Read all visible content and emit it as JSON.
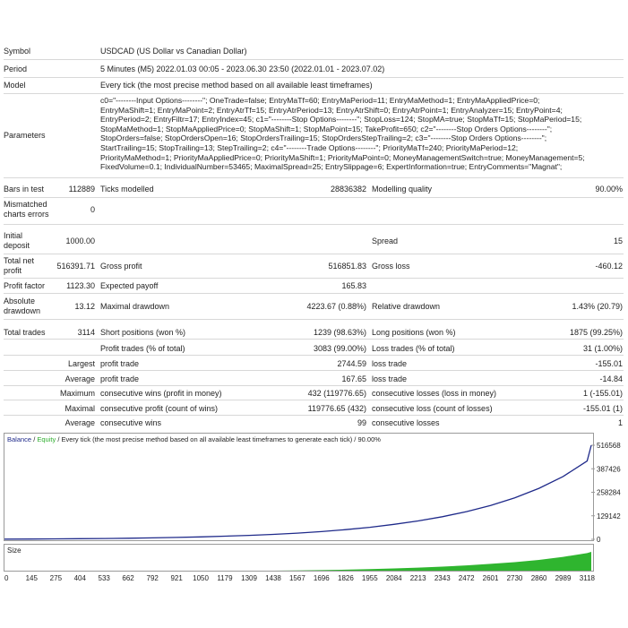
{
  "header": {
    "symbol_label": "Symbol",
    "symbol_value": "USDCAD (US Dollar vs Canadian Dollar)",
    "period_label": "Period",
    "period_value": "5 Minutes (M5) 2022.01.03 00:05 - 2023.06.30 23:50 (2022.01.01 - 2023.07.02)",
    "model_label": "Model",
    "model_value": "Every tick (the most precise method based on all available least timeframes)",
    "parameters_label": "Parameters",
    "parameters_lines": [
      "c0=\"--------Input Options--------\"; OneTrade=false; EntryMaTf=60; EntryMaPeriod=11; EntryMaMethod=1; EntryMaAppliedPrice=0;",
      "EntryMaShift=1; EntryMaPoint=2; EntryAtrTf=15; EntryAtrPeriod=13; EntryAtrShift=0; EntryAtrPoint=1; EntryAnalyzer=15; EntryPoint=4;",
      "EntryPeriod=2; EntryFiltr=17; EntryIndex=45; c1=\"--------Stop Options--------\"; StopLoss=124; StopMA=true; StopMaTf=15; StopMaPeriod=15;",
      "StopMaMethod=1; StopMaAppliedPrice=0; StopMaShift=1; StopMaPoint=15; TakeProfit=650; c2=\"--------Stop Orders Options--------\";",
      "StopOrders=false; StopOrdersOpen=16; StopOrdersTrailing=15; StopOrdersStepTrailing=2; c3=\"--------Stop Orders Options--------\";",
      "StartTrailing=15; StopTrailing=13; StepTrailing=2; c4=\"--------Trade Options--------\"; PriorityMaTf=240; PriorityMaPeriod=12;",
      "PriorityMaMethod=1; PriorityMaAppliedPrice=0; PriorityMaShift=1; PriorityMaPoint=0; MoneyManagementSwitch=true; MoneyManagement=5;",
      "FixedVolume=0.1; IndividualNumber=53465; MaximalSpread=25; EntrySlippage=6; ExpertInformation=true; EntryComments=\"Magnat\";"
    ]
  },
  "stats": {
    "bars_label": "Bars in test",
    "bars_value": "112889",
    "ticks_label": "Ticks modelled",
    "ticks_value": "28836382",
    "quality_label": "Modelling quality",
    "quality_value": "90.00%",
    "mismatch_label_1": "Mismatched",
    "mismatch_label_2": "charts errors",
    "mismatch_value": "0",
    "deposit_label_1": "Initial",
    "deposit_label_2": "deposit",
    "deposit_value": "1000.00",
    "spread_label": "Spread",
    "spread_value": "15",
    "netprofit_label_1": "Total net",
    "netprofit_label_2": "profit",
    "netprofit_value": "516391.71",
    "grossprofit_label": "Gross profit",
    "grossprofit_value": "516851.83",
    "grossloss_label": "Gross loss",
    "grossloss_value": "-460.12",
    "pf_label": "Profit factor",
    "pf_value": "1123.30",
    "payoff_label": "Expected payoff",
    "payoff_value": "165.83",
    "absdd_label_1": "Absolute",
    "absdd_label_2": "drawdown",
    "absdd_value": "13.12",
    "maxdd_label": "Maximal drawdown",
    "maxdd_value": "4223.67 (0.88%)",
    "reldd_label": "Relative drawdown",
    "reldd_value": "1.43% (20.79)",
    "trades_label": "Total trades",
    "trades_value": "3114",
    "short_label": "Short positions (won %)",
    "short_value": "1239 (98.63%)",
    "long_label": "Long positions (won %)",
    "long_value": "1875 (99.25%)",
    "profit_trades_label": "Profit trades (% of total)",
    "profit_trades_value": "3083 (99.00%)",
    "loss_trades_label": "Loss trades (% of total)",
    "loss_trades_value": "31 (1.00%)",
    "largest_label": "Largest",
    "largest_profit_label": "profit trade",
    "largest_profit_value": "2744.59",
    "largest_loss_label": "loss trade",
    "largest_loss_value": "-155.01",
    "average_label": "Average",
    "avg_profit_label": "profit trade",
    "avg_profit_value": "167.65",
    "avg_loss_label": "loss trade",
    "avg_loss_value": "-14.84",
    "maximum_label": "Maximum",
    "max_wins_label": "consecutive wins (profit in money)",
    "max_wins_value": "432 (119776.65)",
    "max_losses_label": "consecutive losses (loss in money)",
    "max_losses_value": "1 (-155.01)",
    "maximal_label": "Maximal",
    "maxl_profit_label": "consecutive profit (count of wins)",
    "maxl_profit_value": "119776.65 (432)",
    "maxl_loss_label": "consecutive loss (count of losses)",
    "maxl_loss_value": "-155.01 (1)",
    "average2_label": "Average",
    "avg_wins_label": "consecutive wins",
    "avg_wins_value": "99",
    "avg_losses_label": "consecutive losses",
    "avg_losses_value": "1"
  },
  "chart_legend": {
    "balance": "Balance",
    "slash1": " / ",
    "equity": "Equity",
    "rest": " / Every tick (the most precise method based on all available least timeframes to generate each tick) / 90.00%"
  },
  "colors": {
    "balance": "#1f2a8a",
    "equity": "#2fae2f",
    "size_fill": "#2fb52f",
    "border": "#9a9a9a"
  },
  "chart_data": {
    "type": "line",
    "title": "",
    "size_label": "Size",
    "y_ticks": [
      "516568",
      "387426",
      "258284",
      "129142",
      "0"
    ],
    "ylim": [
      0,
      516568
    ],
    "x_ticks": [
      "0",
      "145",
      "275",
      "404",
      "533",
      "662",
      "792",
      "921",
      "1050",
      "1179",
      "1309",
      "1438",
      "1567",
      "1696",
      "1826",
      "1955",
      "2084",
      "2213",
      "2343",
      "2472",
      "2601",
      "2730",
      "2860",
      "2989",
      "3118"
    ],
    "series": [
      {
        "name": "Balance",
        "x": [
          0,
          145,
          275,
          404,
          533,
          662,
          792,
          921,
          1050,
          1179,
          1309,
          1438,
          1567,
          1696,
          1826,
          1955,
          2084,
          2213,
          2343,
          2472,
          2601,
          2730,
          2860,
          2989,
          3118,
          3140
        ],
        "values": [
          1000,
          1500,
          2300,
          3300,
          4500,
          6000,
          8000,
          10500,
          13500,
          17000,
          21500,
          27000,
          34000,
          42500,
          53000,
          66000,
          82000,
          101000,
          124000,
          152000,
          186000,
          228000,
          280000,
          345000,
          430000,
          516568
        ]
      }
    ],
    "size_series": {
      "x": [
        0,
        1438,
        1567,
        1696,
        1826,
        1955,
        2084,
        2213,
        2343,
        2472,
        2601,
        2730,
        2860,
        2989,
        3118,
        3140
      ],
      "values": [
        0,
        0,
        1,
        2,
        4,
        6,
        9,
        12,
        16,
        21,
        27,
        34,
        43,
        55,
        70,
        75
      ]
    }
  }
}
